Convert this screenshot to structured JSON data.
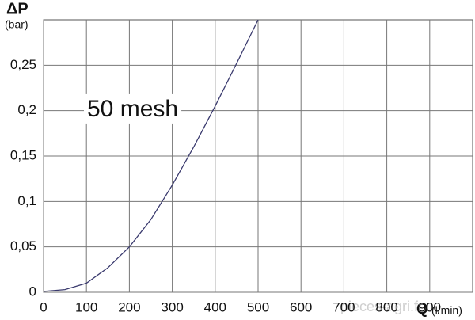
{
  "chart_data": {
    "type": "line",
    "y_label": "ΔP",
    "y_unit": "(bar)",
    "x_label": "Q",
    "x_unit": "(l/min)",
    "annotation": "50 mesh",
    "watermark": "pieces-agri.fr",
    "x": [
      0,
      50,
      100,
      150,
      200,
      250,
      300,
      350,
      400,
      450,
      500
    ],
    "series": [
      {
        "name": "50 mesh",
        "color": "#3a3a6e",
        "values": [
          0.001,
          0.003,
          0.01,
          0.027,
          0.05,
          0.08,
          0.118,
          0.16,
          0.205,
          0.252,
          0.3
        ]
      }
    ],
    "xlim": [
      0,
      1000
    ],
    "xticks": [
      0,
      100,
      200,
      300,
      400,
      500,
      600,
      700,
      800,
      900
    ],
    "ylim": [
      0,
      0.3
    ],
    "yticks": [
      {
        "value": 0,
        "label": "0"
      },
      {
        "value": 0.05,
        "label": "0,05"
      },
      {
        "value": 0.1,
        "label": "0,1"
      },
      {
        "value": 0.15,
        "label": "0,15"
      },
      {
        "value": 0.2,
        "label": "0,2"
      },
      {
        "value": 0.25,
        "label": "0,25"
      }
    ],
    "grid": true
  }
}
